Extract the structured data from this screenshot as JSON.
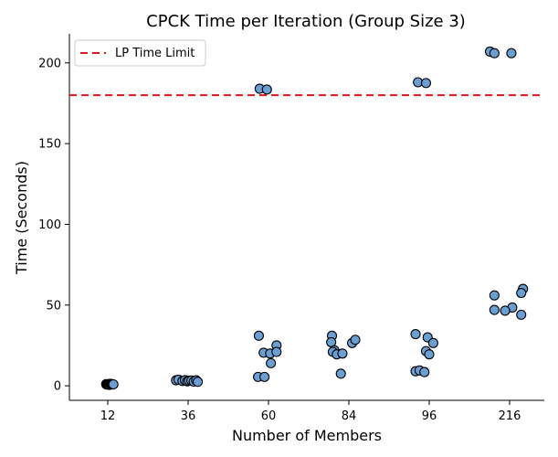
{
  "chart_data": {
    "type": "scatter",
    "title": "CPCK Time per Iteration (Group Size 3)",
    "xlabel": "Number of Members",
    "ylabel": "Time (Seconds)",
    "categories": [
      "12",
      "36",
      "60",
      "84",
      "96",
      "216"
    ],
    "ylim": [
      -9,
      218
    ],
    "yticks": [
      0,
      50,
      100,
      150,
      200
    ],
    "grid": false,
    "legend": {
      "placement": "top-left",
      "entries": [
        {
          "label": "LP Time Limit",
          "style": "dashed",
          "color": "#e0161a"
        }
      ]
    },
    "reference_line": {
      "label": "LP Time Limit",
      "y": 180
    },
    "points": [
      {
        "x": 11.8,
        "y": 1.0
      },
      {
        "x": 11.9,
        "y": 0.8
      },
      {
        "x": 12.0,
        "y": 1.0
      },
      {
        "x": 12.1,
        "y": 0.7
      },
      {
        "x": 12.2,
        "y": 0.6
      },
      {
        "x": 12.3,
        "y": 1.2
      },
      {
        "x": 12.4,
        "y": 0.9
      },
      {
        "x": 12.5,
        "y": 1.1
      },
      {
        "x": 12.6,
        "y": 0.8
      },
      {
        "x": 12.7,
        "y": 0.9
      },
      {
        "x": 34.5,
        "y": 3.4
      },
      {
        "x": 34.8,
        "y": 3.8
      },
      {
        "x": 35.3,
        "y": 3.0
      },
      {
        "x": 35.6,
        "y": 3.5
      },
      {
        "x": 35.9,
        "y": 2.8
      },
      {
        "x": 36.1,
        "y": 3.2
      },
      {
        "x": 36.4,
        "y": 3.3
      },
      {
        "x": 36.7,
        "y": 2.6
      },
      {
        "x": 37.0,
        "y": 3.4
      },
      {
        "x": 37.2,
        "y": 2.5
      },
      {
        "x": 58.9,
        "y": 184.0
      },
      {
        "x": 59.8,
        "y": 183.5
      },
      {
        "x": 58.8,
        "y": 31.0
      },
      {
        "x": 61.0,
        "y": 25.0
      },
      {
        "x": 59.4,
        "y": 20.5
      },
      {
        "x": 60.2,
        "y": 20.0
      },
      {
        "x": 61.0,
        "y": 21.0
      },
      {
        "x": 60.3,
        "y": 14.0
      },
      {
        "x": 58.7,
        "y": 5.5
      },
      {
        "x": 59.5,
        "y": 5.5
      },
      {
        "x": 81.9,
        "y": 31.0
      },
      {
        "x": 81.8,
        "y": 27.0
      },
      {
        "x": 84.4,
        "y": 26.5
      },
      {
        "x": 84.8,
        "y": 28.5
      },
      {
        "x": 82.2,
        "y": 22.0
      },
      {
        "x": 82.0,
        "y": 21.0
      },
      {
        "x": 82.5,
        "y": 19.5
      },
      {
        "x": 83.2,
        "y": 20.0
      },
      {
        "x": 83.0,
        "y": 7.5
      },
      {
        "x": 94.6,
        "y": 188.0
      },
      {
        "x": 95.6,
        "y": 187.5
      },
      {
        "x": 94.3,
        "y": 32.0
      },
      {
        "x": 95.8,
        "y": 30.0
      },
      {
        "x": 96.5,
        "y": 26.5
      },
      {
        "x": 95.6,
        "y": 21.5
      },
      {
        "x": 96.0,
        "y": 19.5
      },
      {
        "x": 94.3,
        "y": 9.0
      },
      {
        "x": 94.8,
        "y": 9.5
      },
      {
        "x": 95.4,
        "y": 8.5
      },
      {
        "x": 213.8,
        "y": 207.0
      },
      {
        "x": 214.3,
        "y": 206.0
      },
      {
        "x": 216.2,
        "y": 206.0
      },
      {
        "x": 217.5,
        "y": 60.0
      },
      {
        "x": 217.3,
        "y": 57.5
      },
      {
        "x": 214.3,
        "y": 56.0
      },
      {
        "x": 216.3,
        "y": 48.5
      },
      {
        "x": 214.3,
        "y": 47.0
      },
      {
        "x": 215.5,
        "y": 46.5
      },
      {
        "x": 217.3,
        "y": 44.0
      }
    ],
    "series_color": "#6a9fd4"
  }
}
